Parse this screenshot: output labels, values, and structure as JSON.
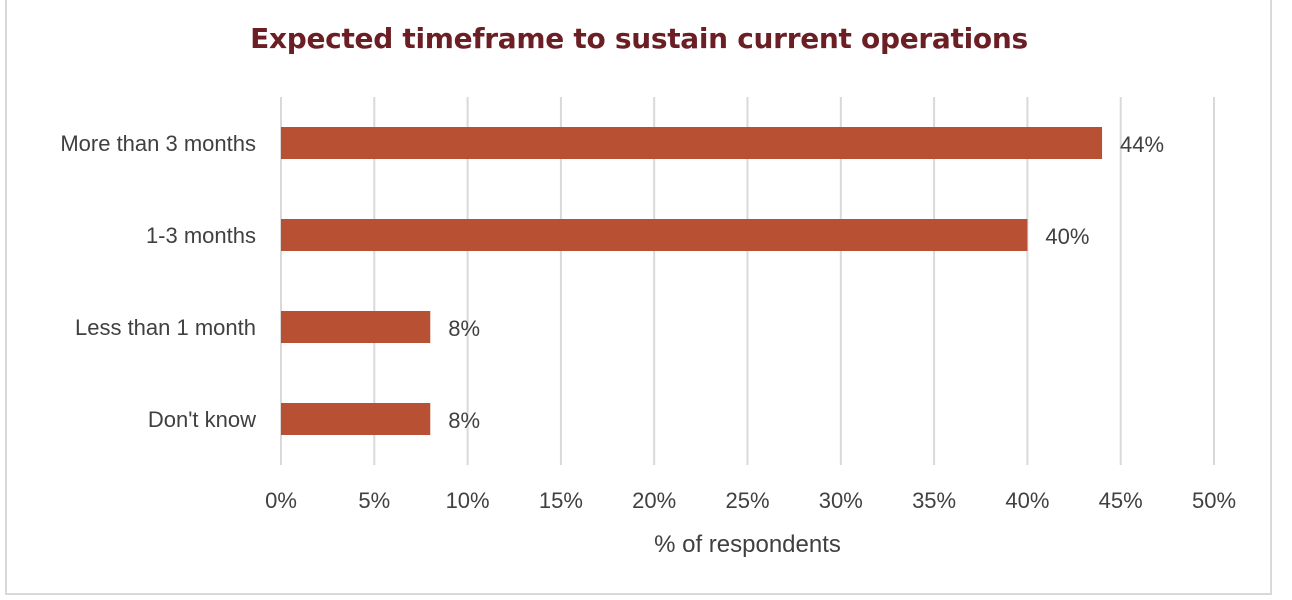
{
  "chart_data": {
    "type": "bar",
    "orientation": "horizontal",
    "title": "Expected timeframe to sustain current operations",
    "xlabel": "% of respondents",
    "ylabel": "",
    "categories": [
      "More than 3 months",
      "1-3 months",
      "Less than 1 month",
      "Don't know"
    ],
    "values": [
      44,
      40,
      8,
      8
    ],
    "data_labels": [
      "44%",
      "40%",
      "8%",
      "8%"
    ],
    "xlim": [
      0,
      50
    ],
    "x_ticks": [
      0,
      5,
      10,
      15,
      20,
      25,
      30,
      35,
      40,
      45,
      50
    ],
    "x_tick_labels": [
      "0%",
      "5%",
      "10%",
      "15%",
      "20%",
      "25%",
      "30%",
      "35%",
      "40%",
      "45%",
      "50%"
    ],
    "grid": "vertical",
    "legend": "none",
    "colors": {
      "bar": "#b85033",
      "title": "#6b1f24",
      "grid": "#d9d9d9",
      "text": "#404040"
    }
  }
}
